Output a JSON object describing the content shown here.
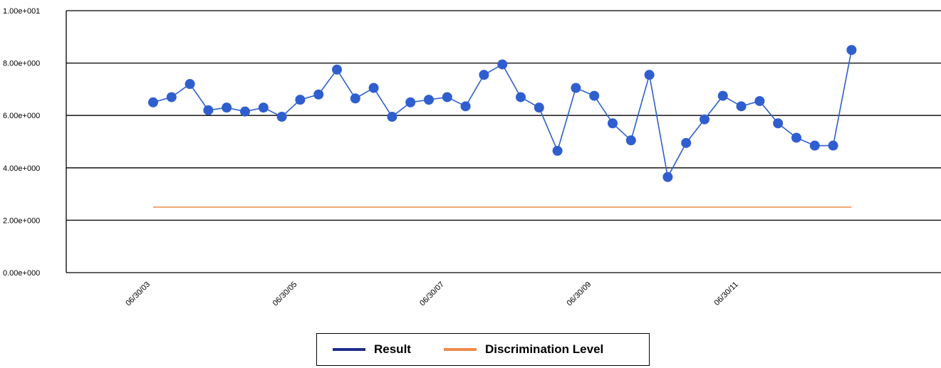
{
  "chart_data": {
    "type": "line",
    "title": "",
    "xlabel": "",
    "ylabel": "",
    "ylim": [
      0,
      10
    ],
    "y_ticks": [
      "0.00e+000",
      "2.00e+000",
      "4.00e+000",
      "6.00e+000",
      "8.00e+000",
      "1.00e+001"
    ],
    "x_tick_labels": [
      {
        "label": "06/30/03",
        "index": 0
      },
      {
        "label": "06/30/05",
        "index": 8
      },
      {
        "label": "06/30/07",
        "index": 16
      },
      {
        "label": "06/30/09",
        "index": 24
      },
      {
        "label": "06/30/11",
        "index": 32
      }
    ],
    "grid": true,
    "legend_position": "bottom",
    "series": [
      {
        "name": "Result",
        "color": "#2e5fd0",
        "marker_color": "#2f5ecf",
        "legend_color": "#1f2d8a",
        "values": [
          6.5,
          6.7,
          7.2,
          6.2,
          6.3,
          6.15,
          6.3,
          5.95,
          6.6,
          6.8,
          7.75,
          6.65,
          7.05,
          5.95,
          6.5,
          6.6,
          6.7,
          6.35,
          7.55,
          7.95,
          6.7,
          6.3,
          4.65,
          7.05,
          6.75,
          5.7,
          5.05,
          7.55,
          3.65,
          4.95,
          5.85,
          6.75,
          6.35,
          6.55,
          5.7,
          5.15,
          4.85,
          4.85,
          8.5
        ]
      },
      {
        "name": "Discrimination Level",
        "color": "#f08a4b",
        "legend_color": "#f08a4b",
        "values_constant": 2.5,
        "x_range_index": [
          0,
          38
        ]
      }
    ]
  }
}
